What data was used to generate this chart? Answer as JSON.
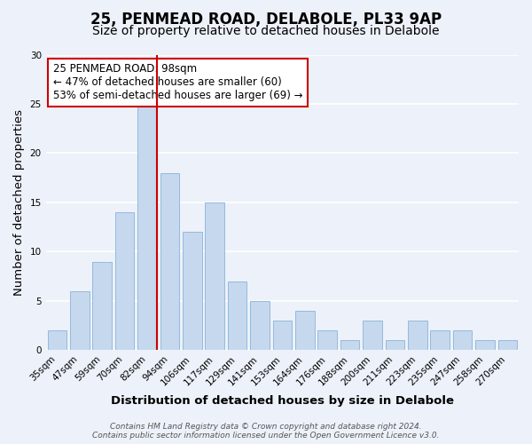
{
  "title": "25, PENMEAD ROAD, DELABOLE, PL33 9AP",
  "subtitle": "Size of property relative to detached houses in Delabole",
  "xlabel": "Distribution of detached houses by size in Delabole",
  "ylabel": "Number of detached properties",
  "bin_labels": [
    "35sqm",
    "47sqm",
    "59sqm",
    "70sqm",
    "82sqm",
    "94sqm",
    "106sqm",
    "117sqm",
    "129sqm",
    "141sqm",
    "153sqm",
    "164sqm",
    "176sqm",
    "188sqm",
    "200sqm",
    "211sqm",
    "223sqm",
    "235sqm",
    "247sqm",
    "258sqm",
    "270sqm"
  ],
  "bar_heights": [
    2,
    6,
    9,
    14,
    25,
    18,
    12,
    15,
    7,
    5,
    3,
    4,
    2,
    1,
    3,
    1,
    3,
    2,
    2,
    1,
    1
  ],
  "bar_color": "#c5d8ee",
  "bar_edge_color": "#8ab4d8",
  "highlight_color": "#cc0000",
  "red_line_after_index": 4,
  "annotation_line1": "25 PENMEAD ROAD: 98sqm",
  "annotation_line2": "← 47% of detached houses are smaller (60)",
  "annotation_line3": "53% of semi-detached houses are larger (69) →",
  "annotation_box_facecolor": "#ffffff",
  "annotation_box_edgecolor": "#cc0000",
  "ylim": [
    0,
    30
  ],
  "yticks": [
    0,
    5,
    10,
    15,
    20,
    25,
    30
  ],
  "footer_line1": "Contains HM Land Registry data © Crown copyright and database right 2024.",
  "footer_line2": "Contains public sector information licensed under the Open Government Licence v3.0.",
  "background_color": "#edf1f9",
  "grid_color": "#ffffff",
  "title_fontsize": 12,
  "subtitle_fontsize": 10,
  "axis_label_fontsize": 9.5,
  "tick_fontsize": 7.5,
  "annotation_fontsize": 8.5,
  "footer_fontsize": 6.5
}
